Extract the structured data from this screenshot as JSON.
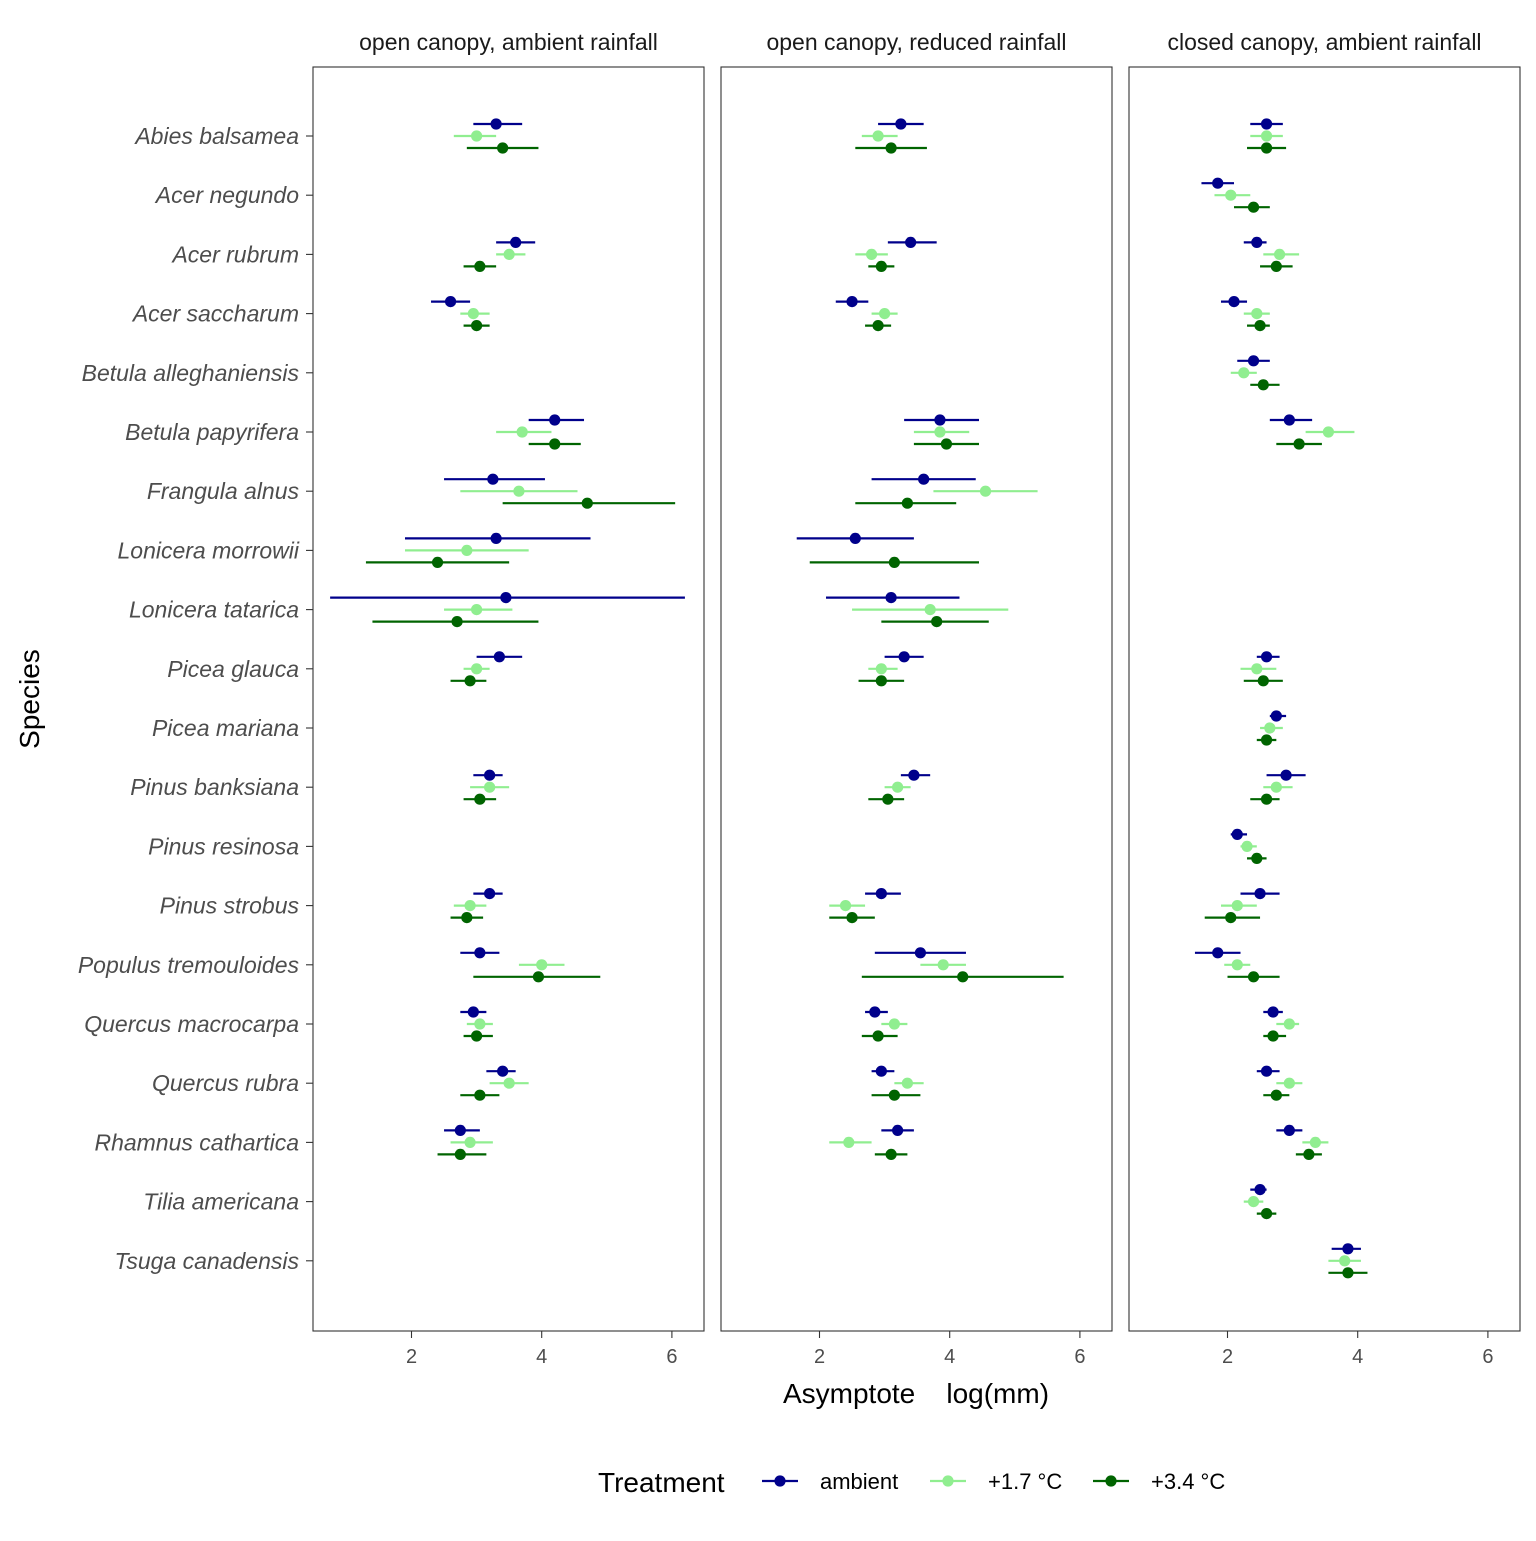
{
  "chart_data": {
    "type": "scatter",
    "panels": [
      "open canopy, ambient rainfall",
      "open canopy, reduced rainfall",
      "closed canopy, ambient rainfall"
    ],
    "xlabel": "Asymptote    log(mm)",
    "ylabel": "Species",
    "xlim": [
      0.5,
      6.5
    ],
    "xticks": [
      2,
      4,
      6
    ],
    "species": [
      "Abies balsamea",
      "Acer negundo",
      "Acer rubrum",
      "Acer saccharum",
      "Betula alleghaniensis",
      "Betula papyrifera",
      "Frangula alnus",
      "Lonicera morrowii",
      "Lonicera tatarica",
      "Picea glauca",
      "Picea mariana",
      "Pinus banksiana",
      "Pinus resinosa",
      "Pinus strobus",
      "Populus tremouloides",
      "Quercus macrocarpa",
      "Quercus rubra",
      "Rhamnus cathartica",
      "Tilia americana",
      "Tsuga canadensis"
    ],
    "legend": {
      "title": "Treatment",
      "position": "bottom",
      "items": [
        {
          "label": "ambient",
          "color": "#00008b"
        },
        {
          "label": "+1.7 °C",
          "color": "#90ee90"
        },
        {
          "label": "+3.4 °C",
          "color": "#006400"
        }
      ]
    },
    "series": [
      {
        "name": "ambient",
        "color": "#00008b",
        "points": [
          [
            0,
            0,
            3.3,
            2.95,
            3.7
          ],
          [
            0,
            2,
            3.6,
            3.3,
            3.9
          ],
          [
            0,
            3,
            2.6,
            2.3,
            2.9
          ],
          [
            0,
            5,
            4.2,
            3.8,
            4.65
          ],
          [
            0,
            6,
            3.25,
            2.5,
            4.05
          ],
          [
            0,
            7,
            3.3,
            1.9,
            4.75
          ],
          [
            0,
            8,
            3.45,
            0.75,
            6.2
          ],
          [
            0,
            9,
            3.35,
            3.0,
            3.7
          ],
          [
            0,
            11,
            3.2,
            2.95,
            3.4
          ],
          [
            0,
            13,
            3.2,
            2.95,
            3.4
          ],
          [
            0,
            14,
            3.05,
            2.75,
            3.35
          ],
          [
            0,
            15,
            2.95,
            2.75,
            3.15
          ],
          [
            0,
            16,
            3.4,
            3.15,
            3.6
          ],
          [
            0,
            17,
            2.75,
            2.5,
            3.05
          ],
          [
            1,
            0,
            3.25,
            2.9,
            3.6
          ],
          [
            1,
            2,
            3.4,
            3.05,
            3.8
          ],
          [
            1,
            3,
            2.5,
            2.25,
            2.75
          ],
          [
            1,
            5,
            3.85,
            3.3,
            4.45
          ],
          [
            1,
            6,
            3.6,
            2.8,
            4.4
          ],
          [
            1,
            7,
            2.55,
            1.65,
            3.45
          ],
          [
            1,
            8,
            3.1,
            2.1,
            4.15
          ],
          [
            1,
            9,
            3.3,
            3.0,
            3.6
          ],
          [
            1,
            11,
            3.45,
            3.25,
            3.7
          ],
          [
            1,
            13,
            2.95,
            2.7,
            3.25
          ],
          [
            1,
            14,
            3.55,
            2.85,
            4.25
          ],
          [
            1,
            15,
            2.85,
            2.7,
            3.05
          ],
          [
            1,
            16,
            2.95,
            2.8,
            3.15
          ],
          [
            1,
            17,
            3.2,
            2.95,
            3.45
          ],
          [
            2,
            0,
            2.6,
            2.35,
            2.85
          ],
          [
            2,
            1,
            1.85,
            1.6,
            2.1
          ],
          [
            2,
            2,
            2.45,
            2.25,
            2.6
          ],
          [
            2,
            3,
            2.1,
            1.9,
            2.3
          ],
          [
            2,
            4,
            2.4,
            2.15,
            2.65
          ],
          [
            2,
            5,
            2.95,
            2.65,
            3.3
          ],
          [
            2,
            9,
            2.6,
            2.45,
            2.8
          ],
          [
            2,
            10,
            2.75,
            2.65,
            2.9
          ],
          [
            2,
            11,
            2.9,
            2.6,
            3.2
          ],
          [
            2,
            12,
            2.15,
            2.05,
            2.3
          ],
          [
            2,
            13,
            2.5,
            2.2,
            2.8
          ],
          [
            2,
            14,
            1.85,
            1.5,
            2.2
          ],
          [
            2,
            15,
            2.7,
            2.55,
            2.85
          ],
          [
            2,
            16,
            2.6,
            2.45,
            2.8
          ],
          [
            2,
            17,
            2.95,
            2.75,
            3.15
          ],
          [
            2,
            18,
            2.5,
            2.35,
            2.6
          ],
          [
            2,
            19,
            3.85,
            3.6,
            4.05
          ]
        ]
      },
      {
        "name": "+1.7 °C",
        "color": "#90ee90",
        "points": [
          [
            0,
            0,
            3.0,
            2.65,
            3.3
          ],
          [
            0,
            2,
            3.5,
            3.3,
            3.75
          ],
          [
            0,
            3,
            2.95,
            2.75,
            3.2
          ],
          [
            0,
            5,
            3.7,
            3.3,
            4.15
          ],
          [
            0,
            6,
            3.65,
            2.75,
            4.55
          ],
          [
            0,
            7,
            2.85,
            1.9,
            3.8
          ],
          [
            0,
            8,
            3.0,
            2.5,
            3.55
          ],
          [
            0,
            9,
            3.0,
            2.8,
            3.2
          ],
          [
            0,
            11,
            3.2,
            2.9,
            3.5
          ],
          [
            0,
            13,
            2.9,
            2.65,
            3.15
          ],
          [
            0,
            14,
            4.0,
            3.65,
            4.35
          ],
          [
            0,
            15,
            3.05,
            2.85,
            3.25
          ],
          [
            0,
            16,
            3.5,
            3.2,
            3.8
          ],
          [
            0,
            17,
            2.9,
            2.6,
            3.25
          ],
          [
            1,
            0,
            2.9,
            2.65,
            3.2
          ],
          [
            1,
            2,
            2.8,
            2.55,
            3.05
          ],
          [
            1,
            3,
            3.0,
            2.8,
            3.2
          ],
          [
            1,
            5,
            3.85,
            3.45,
            4.3
          ],
          [
            1,
            6,
            4.55,
            3.75,
            5.35
          ],
          [
            1,
            8,
            3.7,
            2.5,
            4.9
          ],
          [
            1,
            9,
            2.95,
            2.75,
            3.2
          ],
          [
            1,
            11,
            3.2,
            3.0,
            3.4
          ],
          [
            1,
            13,
            2.4,
            2.15,
            2.7
          ],
          [
            1,
            14,
            3.9,
            3.55,
            4.25
          ],
          [
            1,
            15,
            3.15,
            2.95,
            3.35
          ],
          [
            1,
            16,
            3.35,
            3.15,
            3.6
          ],
          [
            1,
            17,
            2.45,
            2.15,
            2.8
          ],
          [
            2,
            0,
            2.6,
            2.35,
            2.85
          ],
          [
            2,
            1,
            2.05,
            1.8,
            2.35
          ],
          [
            2,
            2,
            2.8,
            2.55,
            3.1
          ],
          [
            2,
            3,
            2.45,
            2.25,
            2.65
          ],
          [
            2,
            4,
            2.25,
            2.05,
            2.45
          ],
          [
            2,
            5,
            3.55,
            3.2,
            3.95
          ],
          [
            2,
            9,
            2.45,
            2.2,
            2.75
          ],
          [
            2,
            10,
            2.65,
            2.5,
            2.85
          ],
          [
            2,
            11,
            2.75,
            2.55,
            3.0
          ],
          [
            2,
            12,
            2.3,
            2.2,
            2.45
          ],
          [
            2,
            13,
            2.15,
            1.9,
            2.45
          ],
          [
            2,
            14,
            2.15,
            1.95,
            2.35
          ],
          [
            2,
            15,
            2.95,
            2.75,
            3.1
          ],
          [
            2,
            16,
            2.95,
            2.75,
            3.15
          ],
          [
            2,
            17,
            3.35,
            3.15,
            3.55
          ],
          [
            2,
            18,
            2.4,
            2.25,
            2.55
          ],
          [
            2,
            19,
            3.8,
            3.55,
            4.05
          ]
        ]
      },
      {
        "name": "+3.4 °C",
        "color": "#006400",
        "points": [
          [
            0,
            0,
            3.4,
            2.85,
            3.95
          ],
          [
            0,
            2,
            3.05,
            2.8,
            3.3
          ],
          [
            0,
            3,
            3.0,
            2.8,
            3.2
          ],
          [
            0,
            5,
            4.2,
            3.8,
            4.6
          ],
          [
            0,
            6,
            4.7,
            3.4,
            6.05
          ],
          [
            0,
            7,
            2.4,
            1.3,
            3.5
          ],
          [
            0,
            8,
            2.7,
            1.4,
            3.95
          ],
          [
            0,
            9,
            2.9,
            2.6,
            3.15
          ],
          [
            0,
            11,
            3.05,
            2.8,
            3.3
          ],
          [
            0,
            13,
            2.85,
            2.6,
            3.1
          ],
          [
            0,
            14,
            3.95,
            2.95,
            4.9
          ],
          [
            0,
            15,
            3.0,
            2.8,
            3.25
          ],
          [
            0,
            16,
            3.05,
            2.75,
            3.35
          ],
          [
            0,
            17,
            2.75,
            2.4,
            3.15
          ],
          [
            1,
            0,
            3.1,
            2.55,
            3.65
          ],
          [
            1,
            2,
            2.95,
            2.75,
            3.15
          ],
          [
            1,
            3,
            2.9,
            2.7,
            3.1
          ],
          [
            1,
            5,
            3.95,
            3.45,
            4.45
          ],
          [
            1,
            6,
            3.35,
            2.55,
            4.1
          ],
          [
            1,
            7,
            3.15,
            1.85,
            4.45
          ],
          [
            1,
            8,
            3.8,
            2.95,
            4.6
          ],
          [
            1,
            9,
            2.95,
            2.6,
            3.3
          ],
          [
            1,
            11,
            3.05,
            2.75,
            3.3
          ],
          [
            1,
            13,
            2.5,
            2.15,
            2.85
          ],
          [
            1,
            14,
            4.2,
            2.65,
            5.75
          ],
          [
            1,
            15,
            2.9,
            2.65,
            3.2
          ],
          [
            1,
            16,
            3.15,
            2.8,
            3.55
          ],
          [
            1,
            17,
            3.1,
            2.85,
            3.35
          ],
          [
            2,
            0,
            2.6,
            2.3,
            2.9
          ],
          [
            2,
            1,
            2.4,
            2.1,
            2.65
          ],
          [
            2,
            2,
            2.75,
            2.5,
            3.0
          ],
          [
            2,
            3,
            2.5,
            2.3,
            2.65
          ],
          [
            2,
            4,
            2.55,
            2.35,
            2.8
          ],
          [
            2,
            5,
            3.1,
            2.75,
            3.45
          ],
          [
            2,
            9,
            2.55,
            2.25,
            2.85
          ],
          [
            2,
            10,
            2.6,
            2.45,
            2.75
          ],
          [
            2,
            11,
            2.6,
            2.35,
            2.8
          ],
          [
            2,
            12,
            2.45,
            2.3,
            2.6
          ],
          [
            2,
            13,
            2.05,
            1.65,
            2.5
          ],
          [
            2,
            14,
            2.4,
            2.0,
            2.8
          ],
          [
            2,
            15,
            2.7,
            2.55,
            2.9
          ],
          [
            2,
            16,
            2.75,
            2.55,
            2.95
          ],
          [
            2,
            17,
            3.25,
            3.05,
            3.45
          ],
          [
            2,
            18,
            2.6,
            2.45,
            2.75
          ],
          [
            2,
            19,
            3.85,
            3.55,
            4.15
          ]
        ]
      }
    ]
  }
}
